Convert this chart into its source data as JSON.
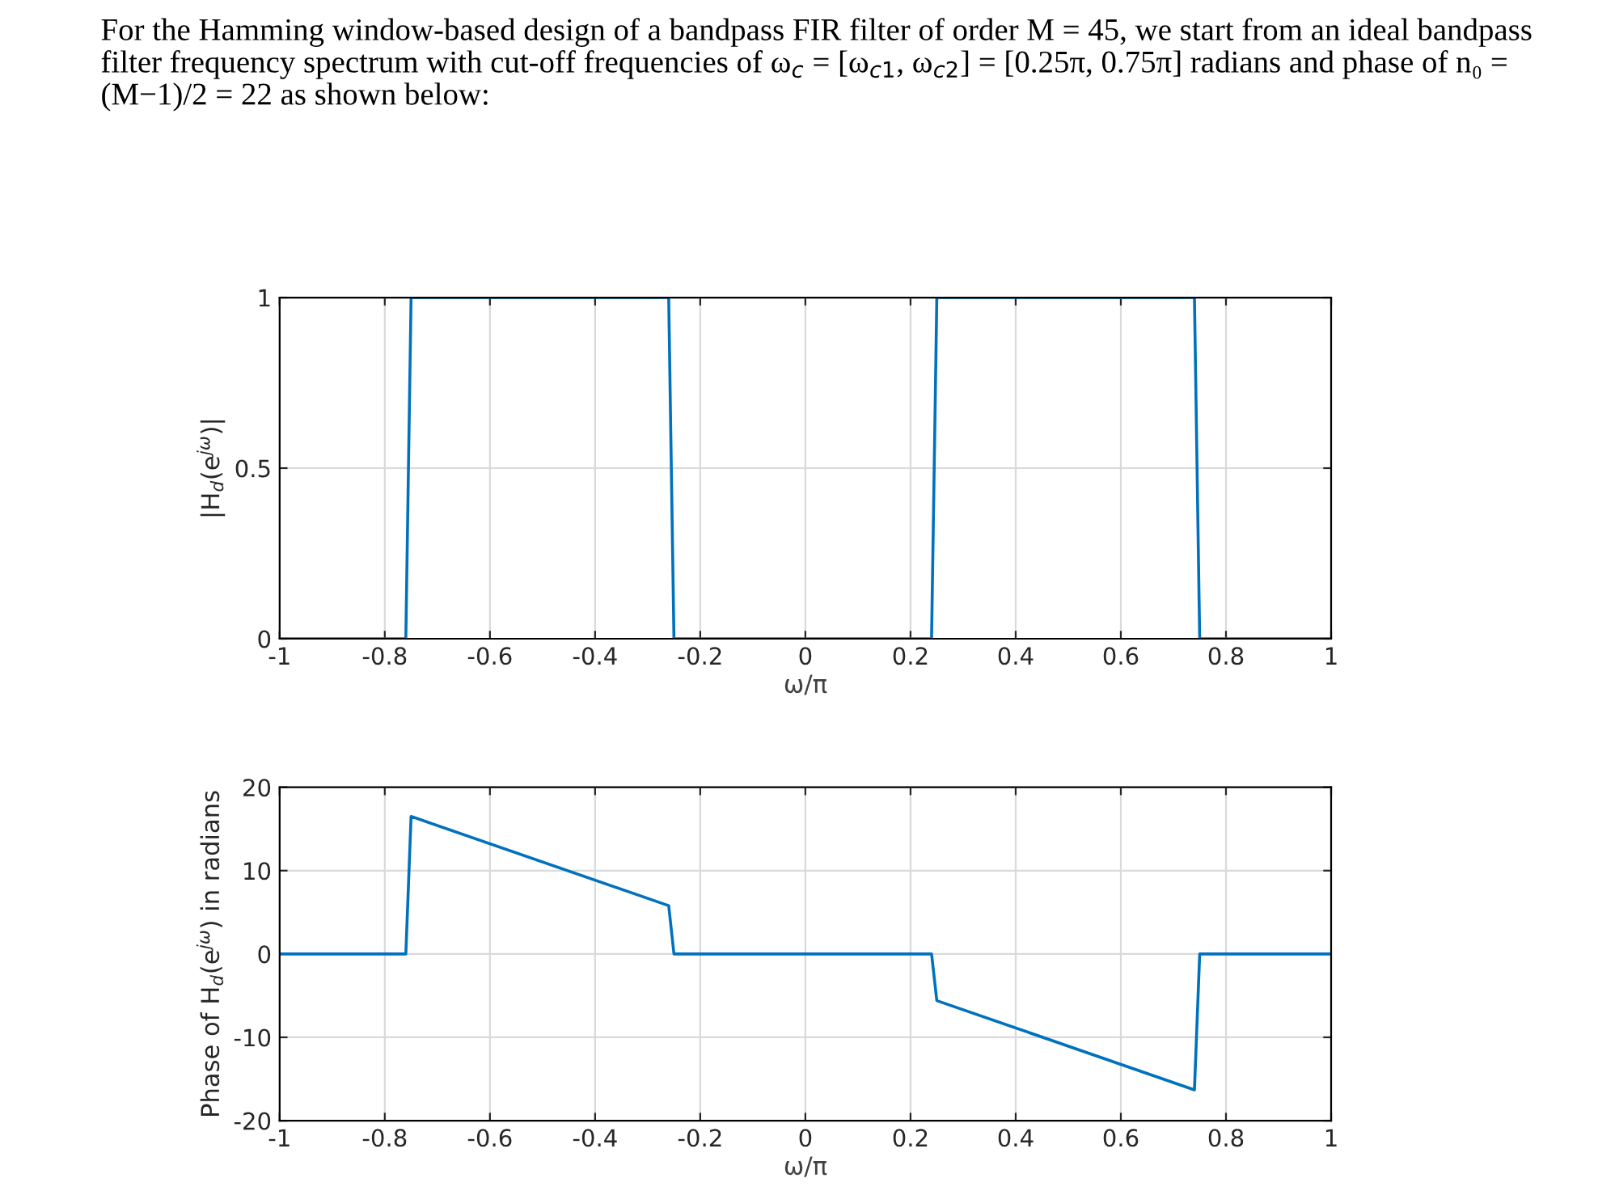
{
  "chart_data": [
    {
      "type": "line",
      "title": "For the Hamming window-based design of a bandpass FIR filter of order M = 45, we start from an ideal bandpass filter frequency spectrum with cut-off frequencies of ω$_{c}$ = [ω$_{c1}$, ω$_{c2}$] = [0.25π, 0.75π] radians and phase of n₀ = (M−1)/2 = 22 as shown below:",
      "xlabel": "ω/π",
      "ylabel": "|H$_{d}$(e$^{jω}$)|",
      "x": [
        -1,
        -0.76,
        -0.75,
        -0.26,
        -0.25,
        0.24,
        0.25,
        0.74,
        0.75,
        1
      ],
      "series": [
        {
          "color": "#0072bd",
          "values": [
            0,
            0,
            1,
            1,
            0,
            0,
            1,
            1,
            0,
            0
          ]
        }
      ],
      "xlim": [
        -1,
        1
      ],
      "xticks": [
        -1,
        -0.8,
        -0.6,
        -0.4,
        -0.2,
        0,
        0.2,
        0.4,
        0.6,
        0.8,
        1
      ],
      "ylim": [
        0,
        1
      ],
      "yticks": [
        0,
        0.5,
        1
      ],
      "grid": true,
      "line_style": "solid"
    },
    {
      "type": "line",
      "xlabel": "ω/π",
      "ylabel": "Phase of H$_{d}$(e$^{jω}$) in radians",
      "x": [
        -1,
        -0.76,
        -0.75,
        -0.26,
        -0.25,
        0.24,
        0.25,
        0.74,
        0.75,
        1
      ],
      "series": [
        {
          "color": "#0072bd",
          "values": [
            0,
            0,
            16.5,
            5.8,
            0,
            0,
            -5.6,
            -16.3,
            0,
            0
          ]
        }
      ],
      "xlim": [
        -1,
        1
      ],
      "xticks": [
        -1,
        -0.8,
        -0.6,
        -0.4,
        -0.2,
        0,
        0.2,
        0.4,
        0.6,
        0.8,
        1
      ],
      "ylim": [
        -20,
        20
      ],
      "yticks": [
        -20,
        -10,
        0,
        10,
        20
      ],
      "grid": true,
      "line_style": "solid"
    }
  ]
}
